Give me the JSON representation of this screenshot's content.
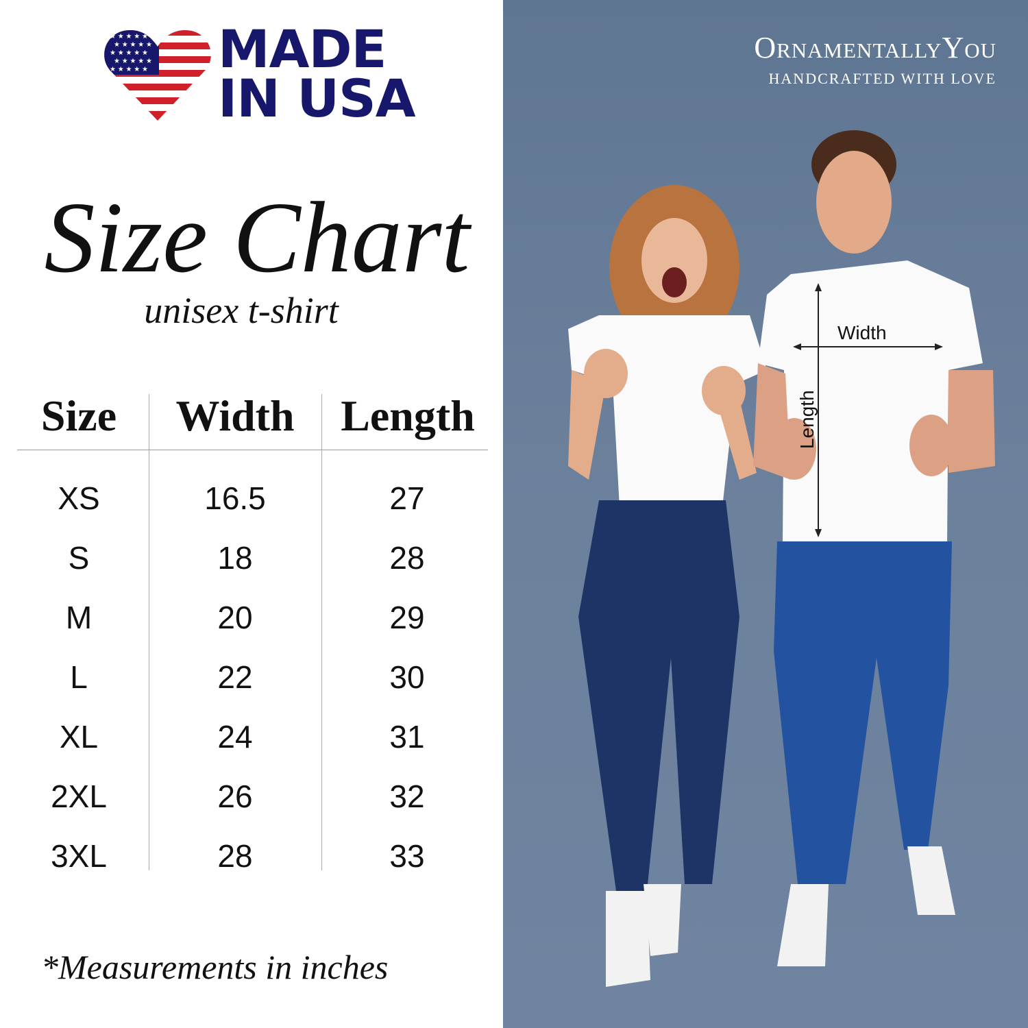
{
  "badge": {
    "line1": "MADE",
    "line2": "IN USA",
    "icon": "us-flag-heart-icon",
    "colors": {
      "navy": "#17186c",
      "red": "#d0202a"
    }
  },
  "title": "Size Chart",
  "subtitle": "unisex t-shirt",
  "table": {
    "headers": [
      "Size",
      "Width",
      "Length"
    ],
    "rows": [
      [
        "XS",
        "16.5",
        "27"
      ],
      [
        "S",
        "18",
        "28"
      ],
      [
        "M",
        "20",
        "29"
      ],
      [
        "L",
        "22",
        "30"
      ],
      [
        "XL",
        "24",
        "31"
      ],
      [
        "2XL",
        "26",
        "32"
      ],
      [
        "3XL",
        "28",
        "33"
      ]
    ]
  },
  "footnote": "*Measurements in inches",
  "brand": {
    "name": "OrnamentallyYou",
    "tagline": "HANDCRAFTED WITH LOVE"
  },
  "photo": {
    "width_label": "Width",
    "length_label": "Length",
    "background": "#687e9a"
  }
}
